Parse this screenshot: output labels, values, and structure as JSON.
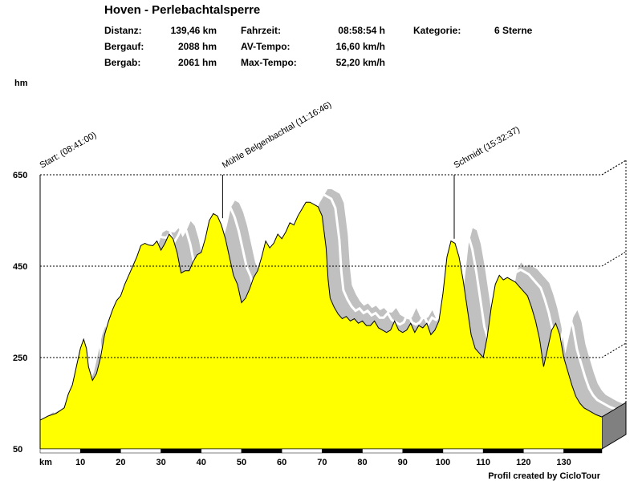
{
  "header": {
    "title": "Hoven - Perlebachtalsperre",
    "stats": [
      {
        "label": "Distanz:",
        "value": "139,46 km"
      },
      {
        "label": "Bergauf:",
        "value": "2088 hm"
      },
      {
        "label": "Bergab:",
        "value": "2061 hm"
      },
      {
        "label": "Fahrzeit:",
        "value": "08:58:54 h"
      },
      {
        "label": "AV-Tempo:",
        "value": "16,60 km/h"
      },
      {
        "label": "Max-Tempo:",
        "value": "52,20 km/h"
      },
      {
        "label": "Kategorie:",
        "value": "6 Sterne"
      }
    ]
  },
  "footer": {
    "credit": "Profil created by CicloTour"
  },
  "colors": {
    "fill": "#ffff00",
    "shadow": "#c0c0c0",
    "side": "#808080",
    "line": "#000000"
  },
  "chart_data": {
    "type": "area",
    "ylabel": "hm",
    "xlabel": "km",
    "xlim": [
      0,
      139.46
    ],
    "ylim": [
      50,
      650
    ],
    "yticks": [
      50,
      250,
      450,
      650
    ],
    "xticks": [
      10,
      20,
      30,
      40,
      50,
      60,
      70,
      80,
      90,
      100,
      110,
      120,
      130
    ],
    "grid": true,
    "waypoints": [
      {
        "label": "Start: (08:41:00)",
        "x": 0,
        "y": 113
      },
      {
        "label": "Mühle Belgenbachtal (11:16:46)",
        "x": 45.3,
        "y": 555
      },
      {
        "label": "Schmidt (15:32:37)",
        "x": 102.8,
        "y": 510
      }
    ],
    "profile": [
      [
        0,
        113
      ],
      [
        2,
        122
      ],
      [
        4,
        128
      ],
      [
        6,
        140
      ],
      [
        7,
        170
      ],
      [
        8,
        190
      ],
      [
        9,
        230
      ],
      [
        10,
        270
      ],
      [
        10.8,
        290
      ],
      [
        11.5,
        270
      ],
      [
        12,
        230
      ],
      [
        13,
        200
      ],
      [
        14,
        215
      ],
      [
        15,
        250
      ],
      [
        16,
        300
      ],
      [
        17,
        330
      ],
      [
        18,
        355
      ],
      [
        19,
        375
      ],
      [
        20,
        385
      ],
      [
        21,
        410
      ],
      [
        22,
        430
      ],
      [
        23,
        450
      ],
      [
        24,
        470
      ],
      [
        25,
        495
      ],
      [
        26,
        500
      ],
      [
        27,
        496
      ],
      [
        28,
        495
      ],
      [
        29,
        505
      ],
      [
        30,
        485
      ],
      [
        31,
        500
      ],
      [
        32,
        520
      ],
      [
        33,
        510
      ],
      [
        34,
        480
      ],
      [
        35,
        435
      ],
      [
        36,
        440
      ],
      [
        37,
        440
      ],
      [
        38,
        460
      ],
      [
        39,
        475
      ],
      [
        40,
        480
      ],
      [
        41,
        510
      ],
      [
        42,
        550
      ],
      [
        43,
        565
      ],
      [
        44,
        560
      ],
      [
        45,
        540
      ],
      [
        46,
        510
      ],
      [
        47,
        470
      ],
      [
        48,
        430
      ],
      [
        49,
        410
      ],
      [
        50,
        370
      ],
      [
        51,
        380
      ],
      [
        52,
        400
      ],
      [
        53,
        425
      ],
      [
        54,
        440
      ],
      [
        55,
        470
      ],
      [
        56,
        505
      ],
      [
        57,
        490
      ],
      [
        58,
        500
      ],
      [
        59,
        520
      ],
      [
        60,
        510
      ],
      [
        61,
        525
      ],
      [
        62,
        545
      ],
      [
        63,
        540
      ],
      [
        64,
        560
      ],
      [
        65,
        575
      ],
      [
        66,
        590
      ],
      [
        67,
        590
      ],
      [
        68,
        585
      ],
      [
        69,
        580
      ],
      [
        70,
        560
      ],
      [
        71,
        490
      ],
      [
        71.5,
        420
      ],
      [
        72,
        380
      ],
      [
        73,
        360
      ],
      [
        74,
        345
      ],
      [
        75,
        335
      ],
      [
        76,
        340
      ],
      [
        77,
        330
      ],
      [
        78,
        335
      ],
      [
        79,
        325
      ],
      [
        80,
        330
      ],
      [
        81,
        320
      ],
      [
        82,
        320
      ],
      [
        83,
        330
      ],
      [
        84,
        315
      ],
      [
        85,
        310
      ],
      [
        86,
        305
      ],
      [
        87,
        310
      ],
      [
        88,
        330
      ],
      [
        89,
        310
      ],
      [
        90,
        305
      ],
      [
        91,
        310
      ],
      [
        92,
        325
      ],
      [
        93,
        305
      ],
      [
        94,
        320
      ],
      [
        95,
        315
      ],
      [
        96,
        325
      ],
      [
        97,
        300
      ],
      [
        98,
        310
      ],
      [
        99,
        330
      ],
      [
        100,
        390
      ],
      [
        101,
        470
      ],
      [
        102,
        505
      ],
      [
        103,
        500
      ],
      [
        104,
        470
      ],
      [
        105,
        420
      ],
      [
        106,
        360
      ],
      [
        107,
        300
      ],
      [
        108,
        270
      ],
      [
        109,
        260
      ],
      [
        110,
        250
      ],
      [
        111,
        295
      ],
      [
        112,
        360
      ],
      [
        113,
        410
      ],
      [
        114,
        430
      ],
      [
        115,
        420
      ],
      [
        116,
        425
      ],
      [
        117,
        420
      ],
      [
        118,
        415
      ],
      [
        119,
        405
      ],
      [
        120,
        395
      ],
      [
        121,
        385
      ],
      [
        122,
        360
      ],
      [
        123,
        330
      ],
      [
        124,
        290
      ],
      [
        125,
        230
      ],
      [
        126,
        270
      ],
      [
        127,
        310
      ],
      [
        128,
        325
      ],
      [
        129,
        300
      ],
      [
        130,
        250
      ],
      [
        131,
        220
      ],
      [
        132,
        190
      ],
      [
        133,
        165
      ],
      [
        134,
        150
      ],
      [
        135,
        140
      ],
      [
        136,
        135
      ],
      [
        137,
        130
      ],
      [
        138,
        125
      ],
      [
        139.46,
        120
      ]
    ]
  }
}
